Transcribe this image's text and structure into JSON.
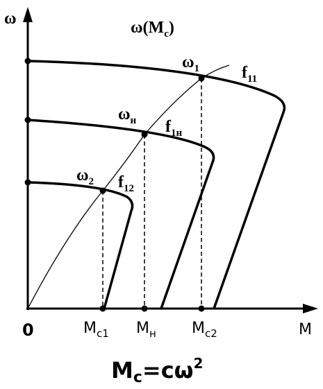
{
  "axes": {
    "y_label": "ω",
    "x_label": "M",
    "origin": "0"
  },
  "title": {
    "base": "ω(M",
    "sub": "c",
    "tail": ")"
  },
  "points": [
    {
      "base": "ω",
      "sub": "1"
    },
    {
      "base": "ω",
      "sub": "н"
    },
    {
      "base": "ω",
      "sub": "2"
    }
  ],
  "curves": [
    {
      "base": "f",
      "sub": "11"
    },
    {
      "base": "f",
      "sub": "1н"
    },
    {
      "base": "f",
      "sub": "12"
    }
  ],
  "x_marks": [
    {
      "base": "M",
      "sub": "c1"
    },
    {
      "base": "M",
      "sub": "н"
    },
    {
      "base": "M",
      "sub": "c2"
    }
  ],
  "formula": {
    "base": "M",
    "sub": "c",
    "tail": "=cω",
    "sup": "2"
  }
}
